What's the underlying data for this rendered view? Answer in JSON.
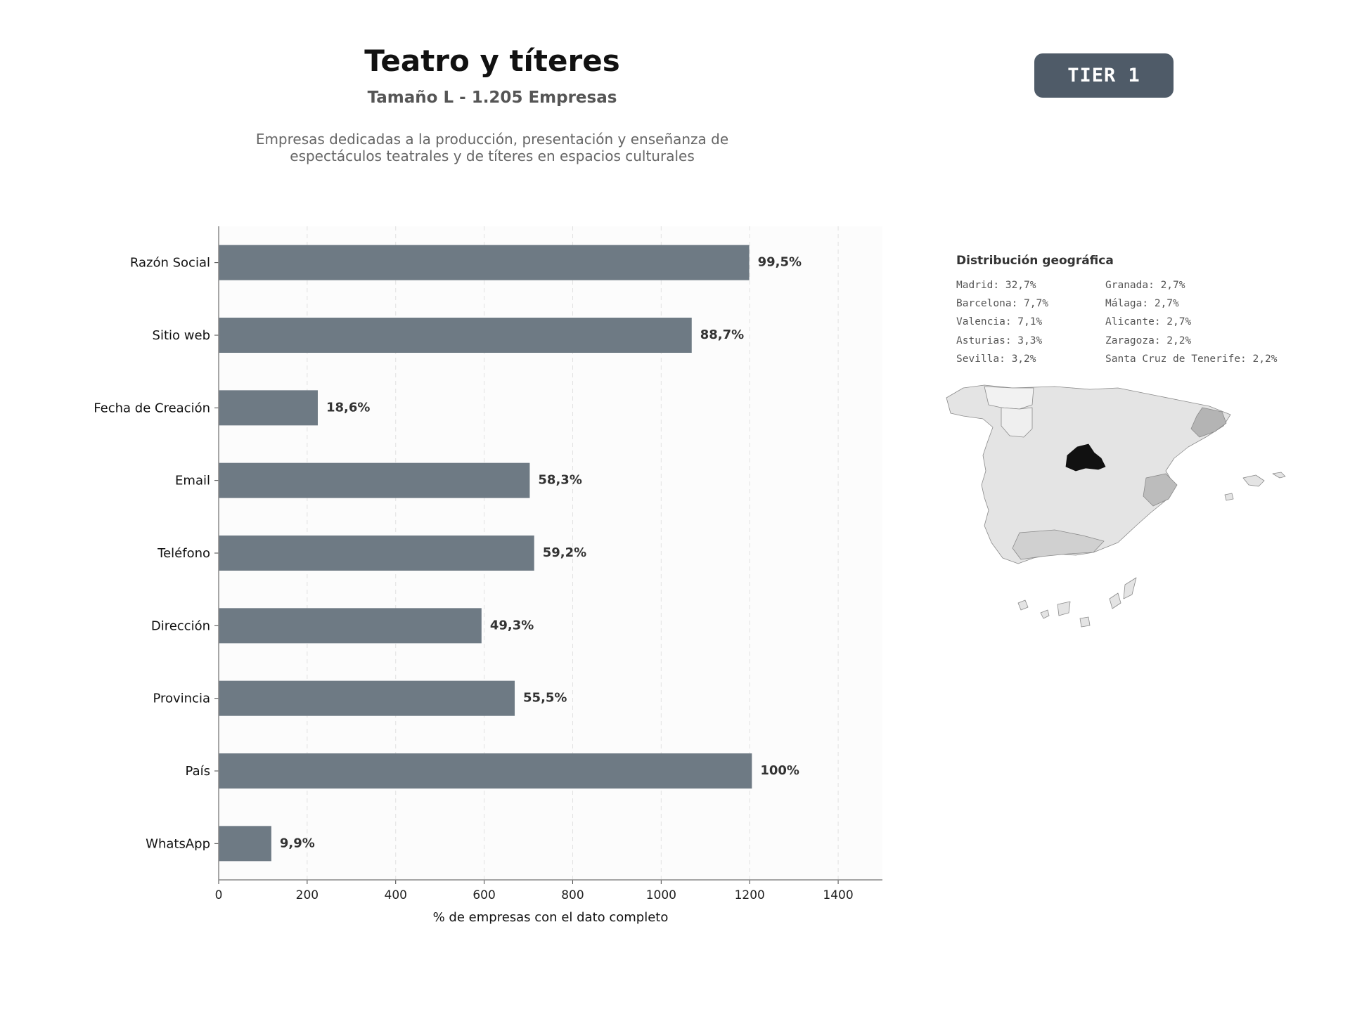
{
  "header": {
    "title": "Teatro y títeres",
    "subtitle": "Tamaño L - 1.205 Empresas",
    "description_line1": "Empresas dedicadas a la producción, presentación y enseñanza de",
    "description_line2": "espectáculos teatrales y de títeres en espacios culturales",
    "tier_label": "TIER 1"
  },
  "chart_data": {
    "type": "bar",
    "orientation": "horizontal",
    "categories": [
      "Razón Social",
      "Sitio web",
      "Fecha de Creación",
      "Email",
      "Teléfono",
      "Dirección",
      "Provincia",
      "País",
      "WhatsApp"
    ],
    "values": [
      1199,
      1069,
      224,
      703,
      713,
      594,
      669,
      1205,
      119
    ],
    "data_labels": [
      "99,5%",
      "88,7%",
      "18,6%",
      "58,3%",
      "59,2%",
      "49,3%",
      "55,5%",
      "100%",
      "9,9%"
    ],
    "xlabel": "% de empresas con el dato completo",
    "ylabel": "",
    "xlim": [
      0,
      1500
    ],
    "xticks": [
      0,
      200,
      400,
      600,
      800,
      1000,
      1200,
      1400
    ],
    "grid": "vertical-dashed",
    "colors": {
      "bar": "#6e7a84",
      "plot_bg": "#fcfcfc",
      "label": "#333333",
      "grid": "#e2e2e2"
    }
  },
  "geo": {
    "title": "Distribución geográfica",
    "items": [
      "Madrid: 32,7%",
      "Barcelona: 7,7%",
      "Valencia: 7,1%",
      "Asturias: 3,3%",
      "Sevilla: 3,2%",
      "Granada: 2,7%",
      "Málaga: 2,7%",
      "Alicante: 2,7%",
      "Zaragoza: 2,2%",
      "Santa Cruz de Tenerife: 2,2%"
    ],
    "map_colors": {
      "base": "#e4e4e4",
      "light": "#f2f2f2",
      "mid": "#bcbcbc",
      "madrid": "#111111",
      "border": "#8a8a8a"
    }
  }
}
